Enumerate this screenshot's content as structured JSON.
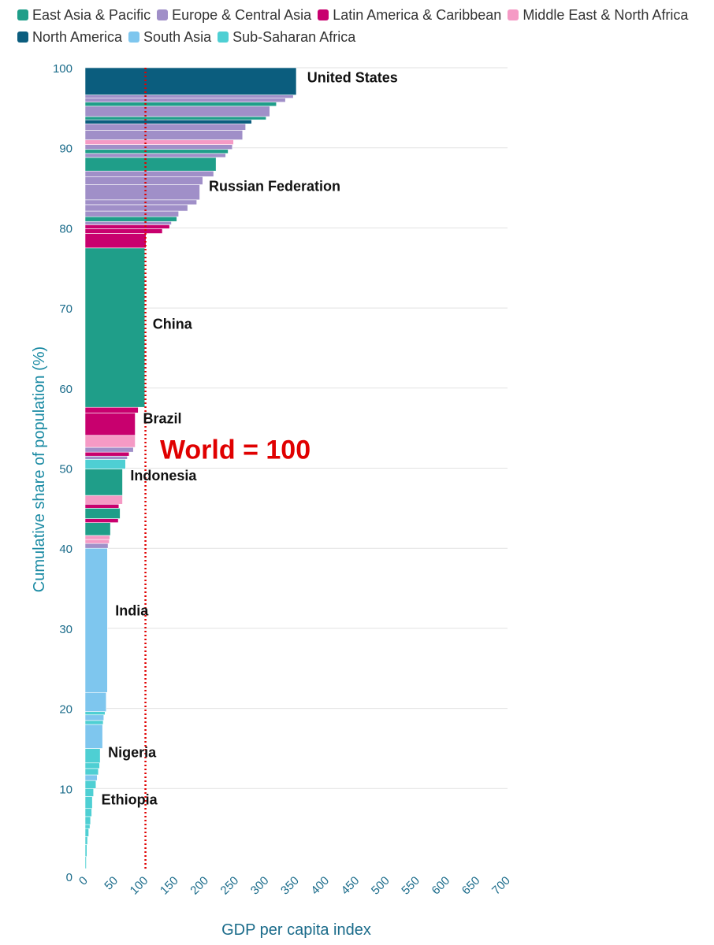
{
  "chart_data": {
    "type": "bar",
    "orientation": "horizontal-step",
    "xlabel": "GDP per capita index",
    "ylabel": "Cumulative share of population (%)",
    "xlim": [
      0,
      700
    ],
    "ylim": [
      0,
      100
    ],
    "xticks": [
      "0",
      "50",
      "100",
      "150",
      "200",
      "250",
      "300",
      "350",
      "400",
      "450",
      "500",
      "550",
      "600",
      "650",
      "700"
    ],
    "yticks": [
      "0",
      "10",
      "20",
      "30",
      "40",
      "50",
      "60",
      "70",
      "80",
      "90",
      "100"
    ],
    "grid": true,
    "legend_position": "top",
    "reference_line": {
      "x": 100,
      "label": "World = 100",
      "color": "#e00000"
    },
    "regions": [
      {
        "name": "East Asia & Pacific",
        "color": "#1f9e89"
      },
      {
        "name": "Europe & Central Asia",
        "color": "#a08fc8"
      },
      {
        "name": "Latin America & Caribbean",
        "color": "#c8006e"
      },
      {
        "name": "Middle East & North Africa",
        "color": "#f59ac5"
      },
      {
        "name": "North America",
        "color": "#0b5d7e"
      },
      {
        "name": "South Asia",
        "color": "#7ec6ee"
      },
      {
        "name": "Sub-Saharan Africa",
        "color": "#4ecfd3"
      }
    ],
    "segments": [
      {
        "region": "Sub-Saharan Africa",
        "from": 0.0,
        "to": 1.5,
        "value": 2
      },
      {
        "region": "Sub-Saharan Africa",
        "from": 1.5,
        "to": 3.0,
        "value": 3
      },
      {
        "region": "Sub-Saharan Africa",
        "from": 3.0,
        "to": 4.0,
        "value": 4
      },
      {
        "region": "Sub-Saharan Africa",
        "from": 4.0,
        "to": 5.0,
        "value": 6
      },
      {
        "region": "Sub-Saharan Africa",
        "from": 5.0,
        "to": 5.5,
        "value": 8
      },
      {
        "region": "Sub-Saharan Africa",
        "from": 5.5,
        "to": 6.5,
        "value": 9
      },
      {
        "region": "Sub-Saharan Africa",
        "from": 6.5,
        "to": 7.5,
        "value": 11
      },
      {
        "region": "Sub-Saharan Africa",
        "from": 7.5,
        "to": 9.0,
        "value": 12
      },
      {
        "region": "Sub-Saharan Africa",
        "from": 9.0,
        "to": 10.0,
        "value": 14
      },
      {
        "region": "Sub-Saharan Africa",
        "from": 10.0,
        "to": 11.0,
        "value": 18
      },
      {
        "region": "South Asia",
        "from": 11.0,
        "to": 11.7,
        "value": 20
      },
      {
        "region": "Sub-Saharan Africa",
        "from": 11.7,
        "to": 12.5,
        "value": 22
      },
      {
        "region": "Sub-Saharan Africa",
        "from": 12.5,
        "to": 13.2,
        "value": 24
      },
      {
        "region": "Sub-Saharan Africa",
        "from": 13.2,
        "to": 15.0,
        "value": 25
      },
      {
        "region": "South Asia",
        "from": 15.0,
        "to": 18.0,
        "value": 29
      },
      {
        "region": "Sub-Saharan Africa",
        "from": 18.0,
        "to": 18.5,
        "value": 30
      },
      {
        "region": "South Asia",
        "from": 18.5,
        "to": 19.2,
        "value": 31
      },
      {
        "region": "Sub-Saharan Africa",
        "from": 19.2,
        "to": 19.6,
        "value": 33
      },
      {
        "region": "South Asia",
        "from": 19.6,
        "to": 22.0,
        "value": 35
      },
      {
        "region": "South Asia",
        "from": 22.0,
        "to": 40.0,
        "value": 37
      },
      {
        "region": "Europe & Central Asia",
        "from": 40.0,
        "to": 40.6,
        "value": 38
      },
      {
        "region": "Middle East & North Africa",
        "from": 40.6,
        "to": 41.1,
        "value": 40
      },
      {
        "region": "Middle East & North Africa",
        "from": 41.1,
        "to": 41.6,
        "value": 41
      },
      {
        "region": "East Asia & Pacific",
        "from": 41.6,
        "to": 43.2,
        "value": 42
      },
      {
        "region": "Latin America & Caribbean",
        "from": 43.2,
        "to": 43.7,
        "value": 55
      },
      {
        "region": "East Asia & Pacific",
        "from": 43.7,
        "to": 45.0,
        "value": 58
      },
      {
        "region": "Latin America & Caribbean",
        "from": 45.0,
        "to": 45.5,
        "value": 56
      },
      {
        "region": "Middle East & North Africa",
        "from": 45.5,
        "to": 46.6,
        "value": 62
      },
      {
        "region": "East Asia & Pacific",
        "from": 46.6,
        "to": 49.9,
        "value": 62
      },
      {
        "region": "Sub-Saharan Africa",
        "from": 49.9,
        "to": 51.1,
        "value": 67
      },
      {
        "region": "Europe & Central Asia",
        "from": 51.1,
        "to": 51.5,
        "value": 70
      },
      {
        "region": "Latin America & Caribbean",
        "from": 51.5,
        "to": 52.0,
        "value": 73
      },
      {
        "region": "Europe & Central Asia",
        "from": 52.0,
        "to": 52.6,
        "value": 80
      },
      {
        "region": "Middle East & North Africa",
        "from": 52.6,
        "to": 54.1,
        "value": 83
      },
      {
        "region": "Latin America & Caribbean",
        "from": 54.1,
        "to": 56.9,
        "value": 83
      },
      {
        "region": "Latin America & Caribbean",
        "from": 56.9,
        "to": 57.6,
        "value": 88
      },
      {
        "region": "East Asia & Pacific",
        "from": 57.6,
        "to": 77.5,
        "value": 99
      },
      {
        "region": "Latin America & Caribbean",
        "from": 77.5,
        "to": 79.3,
        "value": 101
      },
      {
        "region": "Latin America & Caribbean",
        "from": 79.3,
        "to": 79.9,
        "value": 128
      },
      {
        "region": "Latin America & Caribbean",
        "from": 79.9,
        "to": 80.4,
        "value": 140
      },
      {
        "region": "Europe & Central Asia",
        "from": 80.4,
        "to": 80.8,
        "value": 143
      },
      {
        "region": "East Asia & Pacific",
        "from": 80.8,
        "to": 81.4,
        "value": 152
      },
      {
        "region": "Europe & Central Asia",
        "from": 81.4,
        "to": 82.1,
        "value": 155
      },
      {
        "region": "Europe & Central Asia",
        "from": 82.1,
        "to": 82.9,
        "value": 170
      },
      {
        "region": "Europe & Central Asia",
        "from": 82.9,
        "to": 83.5,
        "value": 185
      },
      {
        "region": "Europe & Central Asia",
        "from": 83.5,
        "to": 85.4,
        "value": 190
      },
      {
        "region": "Europe & Central Asia",
        "from": 85.4,
        "to": 86.4,
        "value": 195
      },
      {
        "region": "Europe & Central Asia",
        "from": 86.4,
        "to": 87.1,
        "value": 213
      },
      {
        "region": "East Asia & Pacific",
        "from": 87.1,
        "to": 88.8,
        "value": 217
      },
      {
        "region": "Europe & Central Asia",
        "from": 88.8,
        "to": 89.3,
        "value": 233
      },
      {
        "region": "East Asia & Pacific",
        "from": 89.3,
        "to": 89.8,
        "value": 237
      },
      {
        "region": "Europe & Central Asia",
        "from": 89.8,
        "to": 90.4,
        "value": 244
      },
      {
        "region": "Middle East & North Africa",
        "from": 90.4,
        "to": 91.0,
        "value": 246
      },
      {
        "region": "Europe & Central Asia",
        "from": 91.0,
        "to": 92.2,
        "value": 261
      },
      {
        "region": "Europe & Central Asia",
        "from": 92.2,
        "to": 93.0,
        "value": 266
      },
      {
        "region": "North America",
        "from": 93.0,
        "to": 93.5,
        "value": 276
      },
      {
        "region": "East Asia & Pacific",
        "from": 93.5,
        "to": 93.9,
        "value": 300
      },
      {
        "region": "Europe & Central Asia",
        "from": 93.9,
        "to": 95.2,
        "value": 306
      },
      {
        "region": "East Asia & Pacific",
        "from": 95.2,
        "to": 95.7,
        "value": 317
      },
      {
        "region": "Europe & Central Asia",
        "from": 95.7,
        "to": 96.2,
        "value": 332
      },
      {
        "region": "Europe & Central Asia",
        "from": 96.2,
        "to": 96.6,
        "value": 345
      },
      {
        "region": "North America",
        "from": 96.6,
        "to": 100.0,
        "value": 350
      }
    ],
    "annotations": [
      {
        "text": "United States",
        "x": 368,
        "y": 98.2
      },
      {
        "text": "Russian Federation",
        "x": 205,
        "y": 84.6
      },
      {
        "text": "China",
        "x": 112,
        "y": 67.4
      },
      {
        "text": "Brazil",
        "x": 96,
        "y": 55.6
      },
      {
        "text": "World = 100",
        "x": 124,
        "y": 51.2,
        "size": 34,
        "color": "#e00000"
      },
      {
        "text": "Indonesia",
        "x": 75,
        "y": 48.5
      },
      {
        "text": "India",
        "x": 50,
        "y": 31.6
      },
      {
        "text": "Nigeria",
        "x": 38,
        "y": 13.9
      },
      {
        "text": "Ethiopia",
        "x": 27,
        "y": 8.0
      }
    ]
  }
}
